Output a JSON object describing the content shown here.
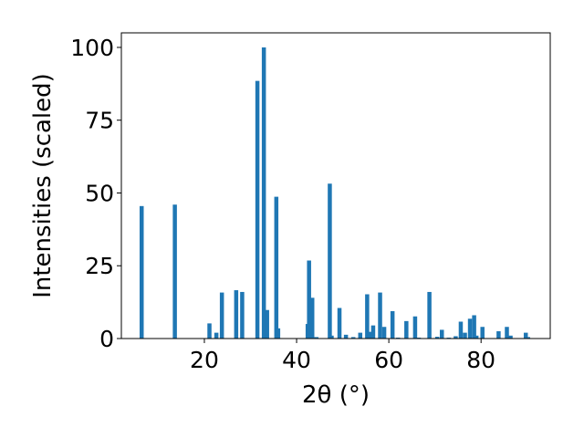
{
  "chart_data": {
    "type": "bar",
    "xlabel": "2θ (°)",
    "ylabel": "Intensities (scaled)",
    "xlim": [
      2,
      95
    ],
    "ylim": [
      0,
      105
    ],
    "xticks": [
      20,
      40,
      60,
      80
    ],
    "yticks": [
      0,
      25,
      50,
      75,
      100
    ],
    "grid": false,
    "bar_color": "#1f77b4",
    "x": [
      6.4,
      13.6,
      21.1,
      22.6,
      23.8,
      26.9,
      28.2,
      31.5,
      32.9,
      33.6,
      35.6,
      36.0,
      42.4,
      42.7,
      43.4,
      44.3,
      47.2,
      47.6,
      49.3,
      50.7,
      52.3,
      53.8,
      55.3,
      55.8,
      56.6,
      58.1,
      59.0,
      60.8,
      62.0,
      63.8,
      65.7,
      66.5,
      68.8,
      70.5,
      71.5,
      73.0,
      74.5,
      75.6,
      76.5,
      77.6,
      78.5,
      79.0,
      80.3,
      83.8,
      85.6,
      86.4,
      89.7,
      90.2
    ],
    "values": [
      45.5,
      46,
      5.2,
      2,
      15.8,
      16.6,
      16,
      88.5,
      100,
      9.8,
      48.7,
      3.5,
      5,
      26.8,
      14,
      0.5,
      53.2,
      1,
      10.5,
      1.3,
      0.5,
      2,
      15.2,
      2.3,
      4.5,
      15.8,
      4,
      9.4,
      0.3,
      6,
      7.6,
      0.3,
      16,
      0.6,
      3,
      0.3,
      0.8,
      5.8,
      2,
      6.8,
      8,
      1,
      4,
      2.5,
      4,
      1,
      2,
      0.5
    ]
  }
}
